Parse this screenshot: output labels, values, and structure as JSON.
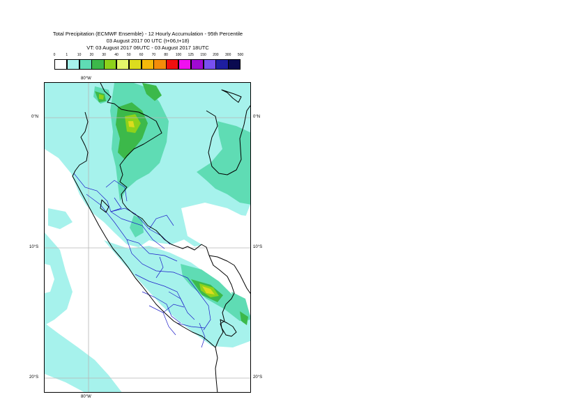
{
  "title": {
    "line1": "Total Precipitation (ECMWF Ensemble) - 12 Hourly Accumulation - 95th Percentile",
    "line2": "03 August 2017 00 UTC (t+06,t+18)",
    "line3": "VT: 03 August 2017 06UTC - 03 August 2017 18UTC"
  },
  "color_scale": {
    "thresholds": [
      "0",
      "1",
      "10",
      "20",
      "30",
      "40",
      "50",
      "60",
      "70",
      "80",
      "100",
      "125",
      "150",
      "200",
      "300",
      "500"
    ],
    "colors": [
      "#ffffff",
      "#a6f2ec",
      "#5fdcb4",
      "#3cb94a",
      "#8ed21a",
      "#e4f66a",
      "#dcdc1e",
      "#f5b90a",
      "#f58c0a",
      "#f01010",
      "#f010f0",
      "#a00ad2",
      "#7850f0",
      "#1e1ea0",
      "#0a0a50"
    ]
  },
  "axes": {
    "lon_top": "80°W",
    "lon_bottom": "80°W",
    "lat_left": [
      "0°N",
      "10°S",
      "20°S"
    ],
    "lat_right": [
      "0°N",
      "10°S",
      "20°S"
    ]
  },
  "map": {
    "colors": {
      "light": "#a6f2ec",
      "medium": "#5fdcb4",
      "green": "#3cb94a",
      "yellowgreen": "#8ed21a",
      "yellow": "#dcdc1e",
      "coast": "#000000",
      "admin": "#1c1cc8",
      "grid": "#b4b4b4"
    }
  }
}
